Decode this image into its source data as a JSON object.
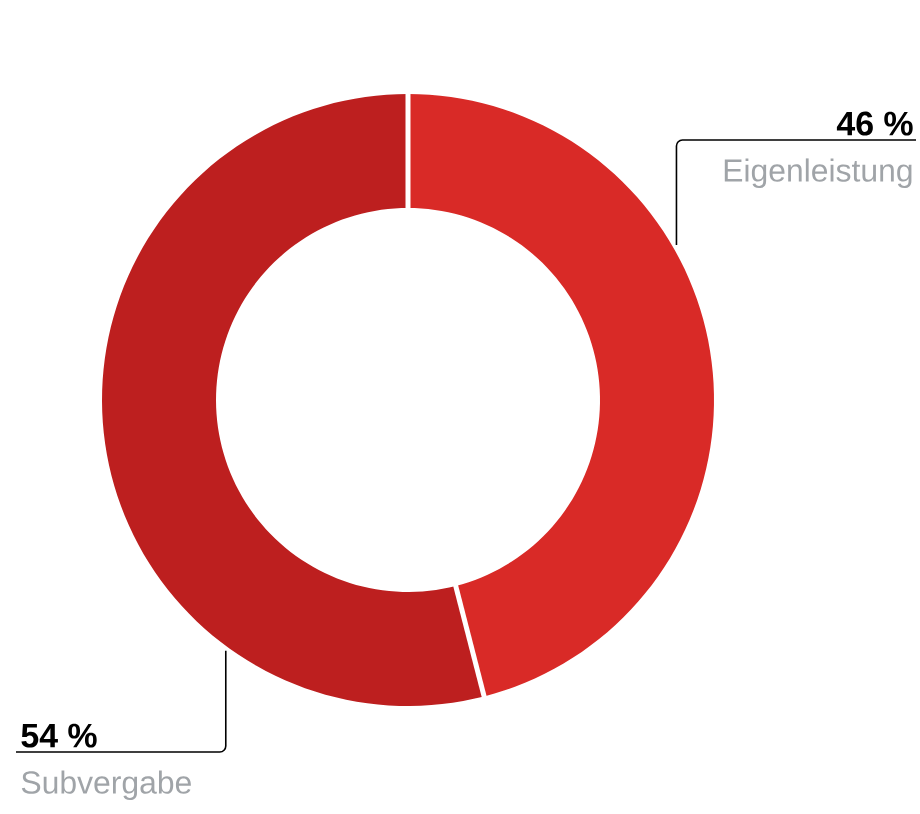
{
  "chart_data": {
    "type": "donut",
    "categories": [
      "Eigenleistung",
      "Subvergabe"
    ],
    "values": [
      46,
      54
    ],
    "colors": [
      "#d92a27",
      "#bd1f1f"
    ],
    "value_labels": [
      "46 %",
      "54 %"
    ]
  }
}
